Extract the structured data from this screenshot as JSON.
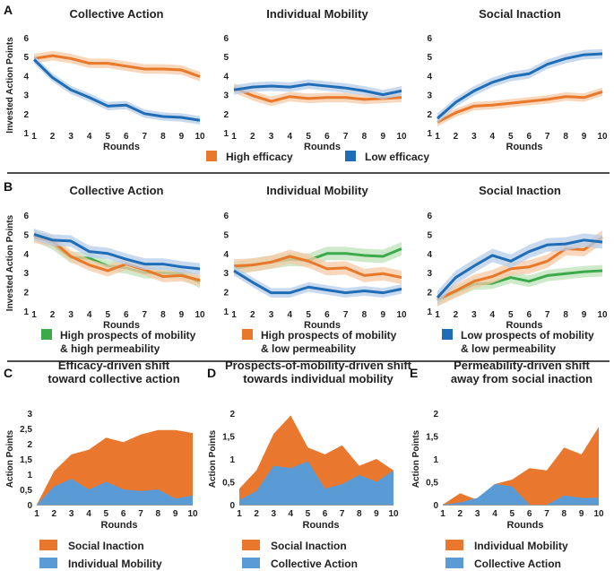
{
  "figure": {
    "panel_letters": [
      "A",
      "B",
      "C",
      "D",
      "E"
    ]
  },
  "colors": {
    "orange": "#E8792B",
    "orange_band": "#F6C9A6",
    "blue": "#1F6DB6",
    "blue_band": "#B7CEEA",
    "green": "#3BAA4B",
    "green_band": "#BFE1B9",
    "area_orange": "#E9782E",
    "area_blue": "#5B9BD5"
  },
  "chart_data": [
    {
      "id": "A1",
      "type": "line",
      "title": "Collective Action",
      "xlabel": "Rounds",
      "ylabel": "Invested Action Points",
      "x": [
        1,
        2,
        3,
        4,
        5,
        6,
        7,
        8,
        9,
        10
      ],
      "ylim": [
        1,
        6
      ],
      "series": [
        {
          "name": "High efficacy",
          "color": "orange",
          "values": [
            4.9,
            5.05,
            4.9,
            4.65,
            4.65,
            4.5,
            4.35,
            4.35,
            4.3,
            3.95
          ],
          "err": 0.25
        },
        {
          "name": "Low efficacy",
          "color": "blue",
          "values": [
            4.85,
            3.9,
            3.25,
            2.85,
            2.4,
            2.45,
            2.0,
            1.85,
            1.8,
            1.65
          ],
          "err": 0.22
        }
      ]
    },
    {
      "id": "A2",
      "type": "line",
      "title": "Individual Mobility",
      "xlabel": "Rounds",
      "ylabel": "",
      "x": [
        1,
        2,
        3,
        4,
        5,
        6,
        7,
        8,
        9,
        10
      ],
      "ylim": [
        1,
        6
      ],
      "series": [
        {
          "name": "High efficacy",
          "color": "orange",
          "values": [
            3.35,
            2.95,
            2.65,
            2.9,
            2.8,
            2.85,
            2.85,
            2.75,
            2.8,
            2.85
          ],
          "err": 0.25
        },
        {
          "name": "Low efficacy",
          "color": "blue",
          "values": [
            3.25,
            3.4,
            3.45,
            3.4,
            3.55,
            3.45,
            3.35,
            3.2,
            3.0,
            3.2
          ],
          "err": 0.25
        }
      ]
    },
    {
      "id": "A3",
      "type": "line",
      "title": "Social Inaction",
      "xlabel": "Rounds",
      "ylabel": "",
      "x": [
        1,
        2,
        3,
        4,
        5,
        6,
        7,
        8,
        9,
        10
      ],
      "ylim": [
        1,
        6
      ],
      "series": [
        {
          "name": "High efficacy",
          "color": "orange",
          "values": [
            1.55,
            2.05,
            2.4,
            2.45,
            2.55,
            2.65,
            2.75,
            2.9,
            2.85,
            3.15
          ],
          "err": 0.22
        },
        {
          "name": "Low efficacy",
          "color": "blue",
          "values": [
            1.75,
            2.6,
            3.2,
            3.65,
            3.95,
            4.1,
            4.6,
            4.9,
            5.1,
            5.15
          ],
          "err": 0.25
        }
      ]
    },
    {
      "id": "B1",
      "type": "line",
      "title": "Collective Action",
      "xlabel": "Rounds",
      "ylabel": "Invested Action Points",
      "x": [
        1,
        2,
        3,
        4,
        5,
        6,
        7,
        8,
        9,
        10
      ],
      "ylim": [
        1,
        6
      ],
      "series": [
        {
          "name": "High prospects of mobility & high permeability",
          "color": "green",
          "values": [
            4.95,
            4.5,
            3.8,
            3.75,
            3.35,
            3.25,
            3.0,
            3.0,
            2.95,
            2.5
          ],
          "err": 0.3
        },
        {
          "name": "High prospects of mobility & low permeability",
          "color": "orange",
          "values": [
            4.85,
            4.65,
            3.85,
            3.4,
            3.1,
            3.45,
            3.15,
            2.8,
            2.85,
            2.6
          ],
          "err": 0.3
        },
        {
          "name": "Low prospects of mobility & low permeability",
          "color": "blue",
          "values": [
            5.0,
            4.7,
            4.65,
            4.1,
            4.0,
            3.7,
            3.45,
            3.45,
            3.3,
            3.2
          ],
          "err": 0.3
        }
      ]
    },
    {
      "id": "B2",
      "type": "line",
      "title": "Individual Mobility",
      "xlabel": "Rounds",
      "ylabel": "",
      "x": [
        1,
        2,
        3,
        4,
        5,
        6,
        7,
        8,
        9,
        10
      ],
      "ylim": [
        1,
        6
      ],
      "series": [
        {
          "name": "High prospects of mobility & high permeability",
          "color": "green",
          "values": [
            3.2,
            3.4,
            3.55,
            3.7,
            3.65,
            4.0,
            4.0,
            3.9,
            3.85,
            4.25
          ],
          "err": 0.35
        },
        {
          "name": "High prospects of mobility & low permeability",
          "color": "orange",
          "values": [
            3.35,
            3.4,
            3.55,
            3.85,
            3.6,
            3.2,
            3.25,
            2.85,
            2.95,
            2.75
          ],
          "err": 0.35
        },
        {
          "name": "Low prospects of mobility & low permeability",
          "color": "blue",
          "values": [
            3.1,
            2.5,
            1.95,
            1.95,
            2.25,
            2.1,
            1.95,
            2.05,
            1.95,
            2.15
          ],
          "err": 0.25
        }
      ]
    },
    {
      "id": "B3",
      "type": "line",
      "title": "Social Inaction",
      "xlabel": "Rounds",
      "ylabel": "",
      "x": [
        1,
        2,
        3,
        4,
        5,
        6,
        7,
        8,
        9,
        10
      ],
      "ylim": [
        1,
        6
      ],
      "series": [
        {
          "name": "High prospects of mobility & high permeability",
          "color": "green",
          "values": [
            1.55,
            2.0,
            2.4,
            2.45,
            2.75,
            2.55,
            2.85,
            2.95,
            3.05,
            3.1
          ],
          "err": 0.3
        },
        {
          "name": "High prospects of mobility & low permeability",
          "color": "orange",
          "values": [
            1.6,
            2.05,
            2.55,
            2.8,
            3.2,
            3.3,
            3.6,
            4.25,
            4.2,
            4.85
          ],
          "err": 0.35
        },
        {
          "name": "Low prospects of mobility & low permeability",
          "color": "blue",
          "values": [
            1.7,
            2.75,
            3.35,
            3.9,
            3.6,
            4.1,
            4.45,
            4.5,
            4.7,
            4.6
          ],
          "err": 0.35
        }
      ]
    },
    {
      "id": "C",
      "type": "area",
      "title": [
        "Efficacy-driven shift",
        "toward collective action"
      ],
      "xlabel": "Rounds",
      "ylabel": "Action Points",
      "x": [
        1,
        2,
        3,
        4,
        5,
        6,
        7,
        8,
        9,
        10
      ],
      "ylim": [
        0,
        3
      ],
      "yticks": [
        0,
        0.5,
        1,
        1.5,
        2,
        2.5,
        3
      ],
      "ytick_labels": [
        "0",
        "0,5",
        "1",
        "1,5",
        "2",
        "2,5",
        "3"
      ],
      "series": [
        {
          "name": "Social Inaction",
          "color": "area_orange",
          "values": [
            0.0,
            1.1,
            1.65,
            1.8,
            2.2,
            2.05,
            2.3,
            2.45,
            2.45,
            2.35
          ]
        },
        {
          "name": "Individual Mobility",
          "color": "area_blue",
          "values": [
            0.0,
            0.6,
            0.85,
            0.5,
            0.75,
            0.5,
            0.45,
            0.5,
            0.2,
            0.3
          ]
        }
      ]
    },
    {
      "id": "D",
      "type": "area",
      "title": [
        "Prospects-of-mobility-driven shift",
        "towards individual mobility"
      ],
      "xlabel": "Rounds",
      "ylabel": "Action Points",
      "x": [
        1,
        2,
        3,
        4,
        5,
        6,
        7,
        8,
        9,
        10
      ],
      "ylim": [
        0,
        2
      ],
      "yticks": [
        0,
        0.5,
        1,
        1.5,
        2
      ],
      "ytick_labels": [
        "0",
        "0,5",
        "1",
        "1,5",
        "2"
      ],
      "series": [
        {
          "name": "Social Inaction",
          "color": "area_orange",
          "values": [
            0.35,
            0.75,
            1.55,
            1.95,
            1.25,
            1.1,
            1.3,
            0.85,
            1.0,
            0.75
          ]
        },
        {
          "name": "Collective Action",
          "color": "area_blue",
          "values": [
            0.1,
            0.3,
            0.85,
            0.8,
            0.95,
            0.35,
            0.45,
            0.65,
            0.5,
            0.75
          ]
        }
      ]
    },
    {
      "id": "E",
      "type": "area",
      "title": [
        "Permeability-driven shift",
        "away from social inaction"
      ],
      "xlabel": "Rounds",
      "ylabel": "Action Points",
      "x": [
        1,
        2,
        3,
        4,
        5,
        6,
        7,
        8,
        9,
        10
      ],
      "ylim": [
        0,
        2
      ],
      "yticks": [
        0,
        0.5,
        1,
        1.5,
        2
      ],
      "ytick_labels": [
        "0",
        "0,5",
        "1",
        "1,5",
        "2"
      ],
      "series": [
        {
          "name": "Individual Mobility",
          "color": "area_orange",
          "values": [
            0.0,
            0.25,
            0.1,
            0.45,
            0.55,
            0.8,
            0.75,
            1.25,
            1.1,
            1.7
          ]
        },
        {
          "name": "Collective Action",
          "color": "area_blue",
          "values": [
            0.0,
            0.05,
            0.15,
            0.45,
            0.4,
            0.0,
            0.0,
            0.2,
            0.15,
            0.15
          ]
        }
      ]
    }
  ],
  "legends": {
    "A": [
      {
        "label": "High efficacy",
        "color": "orange"
      },
      {
        "label": "Low efficacy",
        "color": "blue"
      }
    ],
    "B": [
      {
        "lines": [
          "High prospects of mobility",
          "& high permeability"
        ],
        "color": "green"
      },
      {
        "lines": [
          "High prospects of mobility",
          "& low permeability"
        ],
        "color": "orange"
      },
      {
        "lines": [
          "Low prospects of mobility",
          "& low permeability"
        ],
        "color": "blue"
      }
    ],
    "C": [
      {
        "label": "Social Inaction",
        "color": "area_orange"
      },
      {
        "label": "Individual Mobility",
        "color": "area_blue"
      }
    ],
    "D": [
      {
        "label": "Social Inaction",
        "color": "area_orange"
      },
      {
        "label": "Collective Action",
        "color": "area_blue"
      }
    ],
    "E": [
      {
        "label": "Individual Mobility",
        "color": "area_orange"
      },
      {
        "label": "Collective Action",
        "color": "area_blue"
      }
    ]
  }
}
